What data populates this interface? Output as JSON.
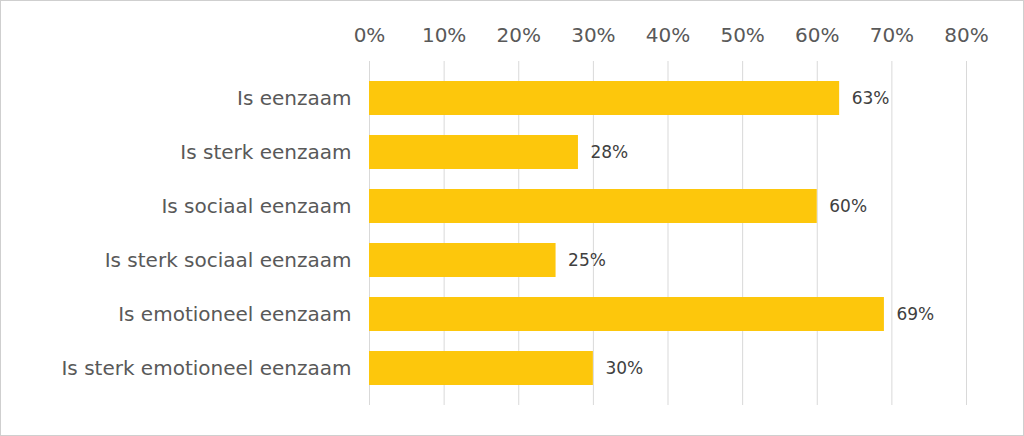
{
  "chart_data": {
    "type": "bar",
    "orientation": "horizontal",
    "categories": [
      "Is eenzaam",
      "Is sterk eenzaam",
      "Is sociaal eenzaam",
      "Is sterk sociaal eenzaam",
      "Is emotioneel eenzaam",
      "Is sterk emotioneel eenzaam"
    ],
    "values": [
      63,
      28,
      60,
      25,
      69,
      30
    ],
    "value_labels": [
      "63%",
      "28%",
      "60%",
      "25%",
      "69%",
      "30%"
    ],
    "color": "#fdc70c",
    "xlim": [
      0,
      80
    ],
    "xticks": [
      {
        "value": 0,
        "label": "0%"
      },
      {
        "value": 10,
        "label": "10%"
      },
      {
        "value": 20,
        "label": "20%"
      },
      {
        "value": 30,
        "label": "30%"
      },
      {
        "value": 40,
        "label": "40%"
      },
      {
        "value": 50,
        "label": "50%"
      },
      {
        "value": 60,
        "label": "60%"
      },
      {
        "value": 70,
        "label": "70%"
      },
      {
        "value": 80,
        "label": "80%"
      }
    ],
    "grid": true,
    "data_labels": true
  }
}
